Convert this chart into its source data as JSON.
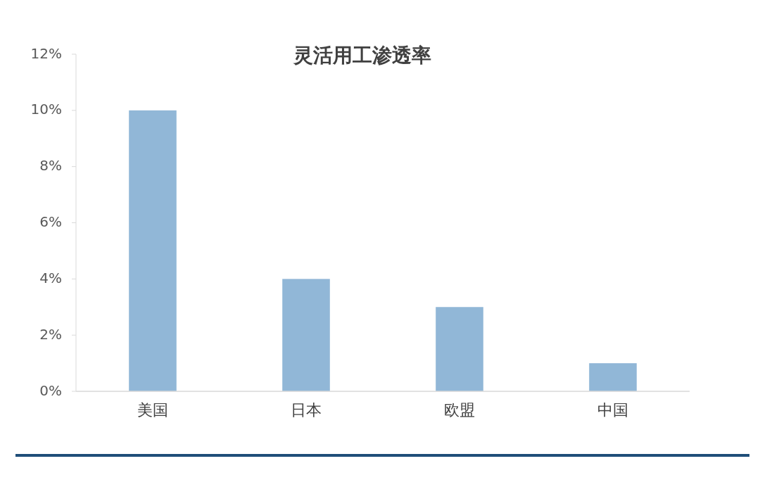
{
  "chart_data": {
    "type": "bar",
    "title": "灵活用工渗透率",
    "categories": [
      "美国",
      "日本",
      "欧盟",
      "中国"
    ],
    "values": [
      10,
      4,
      3,
      1
    ],
    "color": "#91b7d7",
    "ylim": [
      0,
      12
    ],
    "yticks": [
      {
        "value": 0,
        "label": "0%"
      },
      {
        "value": 2,
        "label": "2%"
      },
      {
        "value": 4,
        "label": "4%"
      },
      {
        "value": 6,
        "label": "6%"
      },
      {
        "value": 8,
        "label": "8%"
      },
      {
        "value": 10,
        "label": "10%"
      },
      {
        "value": 12,
        "label": "12%"
      }
    ]
  }
}
